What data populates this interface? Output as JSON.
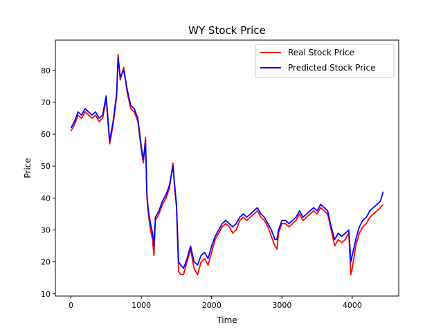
{
  "chart_data": {
    "type": "line",
    "title": "WY Stock Price",
    "xlabel": "Time",
    "ylabel": "Price",
    "xlim": [
      -222,
      4660
    ],
    "ylim": [
      9.3,
      89.5
    ],
    "xticks": [
      0,
      1000,
      2000,
      3000,
      4000
    ],
    "yticks": [
      10,
      20,
      30,
      40,
      50,
      60,
      70,
      80
    ],
    "grid": false,
    "legend_position": "top-right",
    "series": [
      {
        "name": "Real Stock Price",
        "color": "#ff0000",
        "x": [
          0,
          50,
          100,
          150,
          200,
          250,
          300,
          350,
          400,
          450,
          500,
          550,
          600,
          650,
          670,
          700,
          750,
          800,
          850,
          900,
          950,
          1000,
          1030,
          1060,
          1080,
          1100,
          1130,
          1160,
          1180,
          1200,
          1250,
          1300,
          1350,
          1400,
          1450,
          1470,
          1500,
          1530,
          1560,
          1600,
          1650,
          1700,
          1750,
          1800,
          1850,
          1900,
          1950,
          2000,
          2050,
          2100,
          2150,
          2200,
          2250,
          2300,
          2350,
          2400,
          2450,
          2500,
          2550,
          2600,
          2650,
          2700,
          2750,
          2800,
          2850,
          2900,
          2930,
          2950,
          3000,
          3050,
          3100,
          3150,
          3200,
          3250,
          3300,
          3350,
          3400,
          3450,
          3500,
          3550,
          3600,
          3650,
          3700,
          3750,
          3800,
          3850,
          3900,
          3950,
          3980,
          4000,
          4050,
          4100,
          4150,
          4200,
          4250,
          4300,
          4350,
          4400,
          4440
        ],
        "y": [
          61,
          63,
          66,
          65,
          67,
          66,
          65,
          66,
          64,
          65,
          71,
          57,
          63,
          72,
          85,
          77,
          81,
          73,
          68,
          67,
          64,
          55,
          51,
          59,
          40,
          35,
          30,
          27,
          22,
          33,
          35,
          38,
          40,
          43,
          51,
          44,
          37,
          17,
          16,
          16,
          20,
          24,
          18,
          16,
          20,
          21,
          19,
          23,
          27,
          29,
          31,
          32,
          31,
          29,
          30,
          33,
          34,
          33,
          34,
          35,
          36,
          34,
          33,
          31,
          28,
          25,
          24,
          29,
          32,
          32,
          31,
          32,
          33,
          35,
          33,
          34,
          35,
          36,
          35,
          37,
          36,
          35,
          30,
          25,
          27,
          26,
          27,
          29,
          16,
          18,
          25,
          29,
          31,
          32,
          34,
          35,
          36,
          37,
          38
        ]
      },
      {
        "name": "Predicted Stock Price",
        "color": "#0000ff",
        "x": [
          0,
          50,
          100,
          150,
          200,
          250,
          300,
          350,
          400,
          450,
          500,
          550,
          600,
          650,
          670,
          700,
          750,
          800,
          850,
          900,
          950,
          1000,
          1030,
          1060,
          1080,
          1100,
          1130,
          1160,
          1180,
          1200,
          1250,
          1300,
          1350,
          1400,
          1450,
          1470,
          1500,
          1530,
          1560,
          1600,
          1650,
          1700,
          1750,
          1800,
          1850,
          1900,
          1950,
          2000,
          2050,
          2100,
          2150,
          2200,
          2250,
          2300,
          2350,
          2400,
          2450,
          2500,
          2550,
          2600,
          2650,
          2700,
          2750,
          2800,
          2850,
          2900,
          2930,
          2950,
          3000,
          3050,
          3100,
          3150,
          3200,
          3250,
          3300,
          3350,
          3400,
          3450,
          3500,
          3550,
          3600,
          3650,
          3700,
          3750,
          3800,
          3850,
          3900,
          3950,
          3980,
          4000,
          4050,
          4100,
          4150,
          4200,
          4250,
          4300,
          4350,
          4400,
          4440
        ],
        "y": [
          62,
          64,
          67,
          66,
          68,
          67,
          66,
          67,
          65,
          66,
          72,
          58,
          64,
          73,
          84,
          78,
          80,
          74,
          69,
          68,
          65,
          56,
          52,
          58,
          41,
          36,
          32,
          29,
          25,
          34,
          36,
          39,
          41,
          44,
          50,
          45,
          38,
          20,
          19,
          18,
          21,
          25,
          20,
          19,
          22,
          23,
          21,
          25,
          28,
          30,
          32,
          33,
          32,
          31,
          32,
          34,
          35,
          34,
          35,
          36,
          37,
          35,
          34,
          32,
          30,
          27,
          27,
          30,
          33,
          33,
          32,
          33,
          34,
          36,
          34,
          35,
          36,
          37,
          36,
          38,
          37,
          36,
          31,
          27,
          29,
          28,
          29,
          30,
          20,
          22,
          27,
          31,
          33,
          34,
          36,
          37,
          38,
          39,
          42
        ]
      }
    ]
  }
}
